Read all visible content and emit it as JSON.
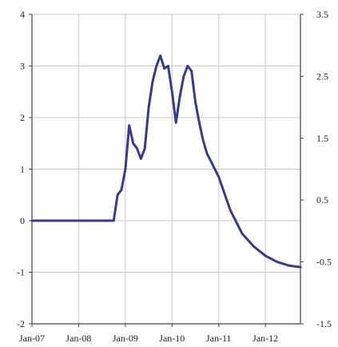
{
  "chart_data": {
    "type": "line",
    "title": "",
    "xlabel": "",
    "ylabel": "",
    "x_tick_labels": [
      "Jan-07",
      "Jan-08",
      "Jan-09",
      "Jan-10",
      "Jan-11",
      "Jan-12"
    ],
    "xlim": [
      "2007-01",
      "2012-10"
    ],
    "ylim_left": [
      -2,
      4
    ],
    "ylim_right": [
      -1.5,
      3.5
    ],
    "y_ticks_left": [
      "-2",
      "-1",
      "0",
      "1",
      "2",
      "3",
      "4"
    ],
    "y_ticks_right": [
      "-1.5",
      "-0.5",
      "0.5",
      "1.5",
      "2.5",
      "3.5"
    ],
    "grid": true,
    "line_color": "#3a3a8c",
    "series": [
      {
        "axis": "left",
        "x": [
          "2007-01",
          "2007-06",
          "2008-01",
          "2008-06",
          "2008-10",
          "2008-11",
          "2008-12",
          "2009-01",
          "2009-02",
          "2009-03",
          "2009-04",
          "2009-05",
          "2009-06",
          "2009-07",
          "2009-08",
          "2009-09",
          "2009-10",
          "2009-11",
          "2009-12",
          "2010-01",
          "2010-02",
          "2010-03",
          "2010-04",
          "2010-05",
          "2010-06",
          "2010-07",
          "2010-08",
          "2010-09",
          "2010-10",
          "2010-11",
          "2011-01",
          "2011-04",
          "2011-07",
          "2011-10",
          "2012-01",
          "2012-04",
          "2012-07",
          "2012-10"
        ],
        "values": [
          0,
          0,
          0,
          0,
          0,
          0.5,
          0.6,
          1.0,
          1.85,
          1.5,
          1.4,
          1.2,
          1.4,
          2.2,
          2.7,
          3.0,
          3.2,
          2.95,
          3.0,
          2.5,
          1.9,
          2.4,
          2.8,
          3.0,
          2.9,
          2.3,
          1.9,
          1.55,
          1.3,
          1.15,
          0.85,
          0.2,
          -0.25,
          -0.5,
          -0.68,
          -0.8,
          -0.87,
          -0.9
        ]
      }
    ]
  }
}
